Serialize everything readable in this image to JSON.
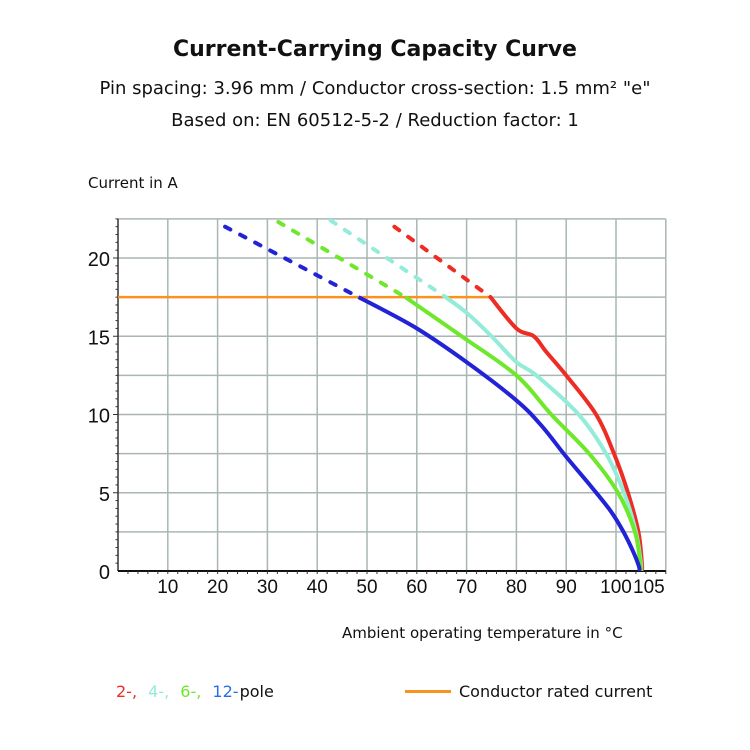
{
  "chart_data": {
    "type": "line",
    "title": "Current-Carrying Capacity Curve",
    "subtitle": [
      "Pin spacing: 3.96 mm / Conductor cross-section: 1.5 mm² \"e\"",
      "Based on: EN 60512-5-2 / Reduction factor: 1"
    ],
    "xlabel": "Ambient operating temperature in °C",
    "ylabel": "Current in A",
    "xlim": [
      0,
      110
    ],
    "ylim": [
      0,
      22.5
    ],
    "xticks": [
      10,
      20,
      30,
      40,
      50,
      60,
      70,
      80,
      90,
      100,
      105
    ],
    "yticks": [
      0,
      5,
      10,
      15,
      20
    ],
    "x_origin_label": "",
    "grid": true,
    "grid_x_step": 10,
    "grid_y_step": 2.5,
    "rated_current": {
      "name": "Conductor rated current",
      "value": 17.5,
      "color": "#f7931e"
    },
    "series": [
      {
        "name": "2-pole",
        "legend": "2-,",
        "color": "#ee2c24",
        "dashed": [
          [
            55.5,
            22.0
          ],
          [
            74.8,
            17.5
          ]
        ],
        "points": [
          [
            74.8,
            17.5
          ],
          [
            80,
            15.5
          ],
          [
            83.5,
            15.0
          ],
          [
            86,
            14.0
          ],
          [
            90,
            12.5
          ],
          [
            96,
            10.0
          ],
          [
            99.6,
            7.5
          ],
          [
            102.4,
            5.0
          ],
          [
            104.5,
            2.5
          ],
          [
            105.2,
            0.5
          ],
          [
            105.2,
            0
          ]
        ]
      },
      {
        "name": "4-pole",
        "legend": "4-,",
        "color": "#93ecd7",
        "dashed": [
          [
            42.7,
            22.4
          ],
          [
            65.8,
            17.5
          ]
        ],
        "points": [
          [
            65.8,
            17.5
          ],
          [
            70,
            16.5
          ],
          [
            75,
            15.0
          ],
          [
            80,
            13.35
          ],
          [
            84,
            12.5
          ],
          [
            92.5,
            10.0
          ],
          [
            98,
            7.5
          ],
          [
            101.6,
            5.0
          ],
          [
            104,
            2.5
          ],
          [
            105,
            0.5
          ],
          [
            105,
            0
          ]
        ]
      },
      {
        "name": "6-pole",
        "legend": "6-,",
        "color": "#6ee82a",
        "dashed": [
          [
            32.2,
            22.3
          ],
          [
            57.7,
            17.5
          ]
        ],
        "points": [
          [
            57.7,
            17.5
          ],
          [
            69,
            15.0
          ],
          [
            80,
            12.5
          ],
          [
            87,
            10.0
          ],
          [
            94.6,
            7.5
          ],
          [
            100.4,
            5.0
          ],
          [
            103.8,
            2.5
          ],
          [
            104.9,
            0.4
          ],
          [
            104.9,
            0
          ]
        ]
      },
      {
        "name": "12-pole",
        "legend": "12-",
        "color": "#2222d6",
        "dashed": [
          [
            21.5,
            22.0
          ],
          [
            48.3,
            17.5
          ]
        ],
        "points": [
          [
            48.3,
            17.5
          ],
          [
            59.5,
            15.6
          ],
          [
            70,
            13.35
          ],
          [
            80,
            10.9
          ],
          [
            85,
            9.3
          ],
          [
            90,
            7.3
          ],
          [
            95,
            5.4
          ],
          [
            99,
            3.8
          ],
          [
            101.5,
            2.5
          ],
          [
            103.5,
            1.2
          ],
          [
            104.6,
            0.3
          ],
          [
            104.7,
            0
          ]
        ]
      }
    ],
    "legend_suffix": "pole"
  }
}
